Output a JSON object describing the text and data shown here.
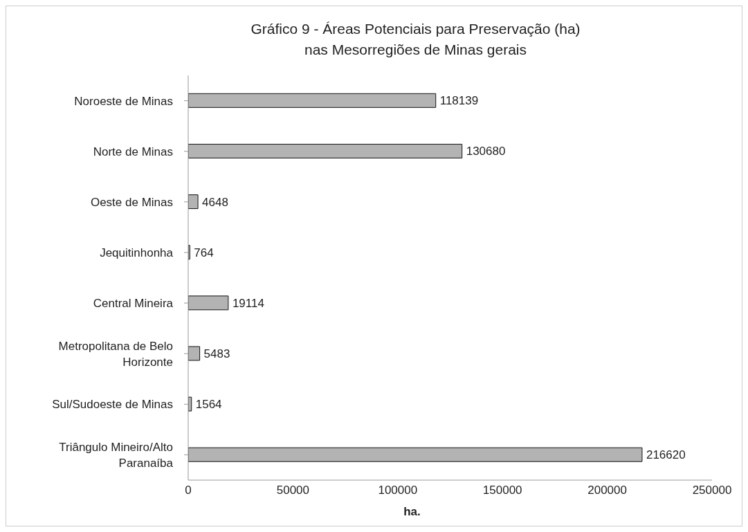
{
  "chart_data": {
    "type": "bar",
    "orientation": "horizontal",
    "title": "Gráfico 9 - Áreas Potenciais para Preservação (ha)\nnas Mesorregiões de Minas gerais",
    "xlabel": "ha.",
    "categories": [
      "Noroeste de Minas",
      "Norte de Minas",
      "Oeste de Minas",
      "Jequitinhonha",
      "Central Mineira",
      "Metropolitana de Belo Horizonte",
      "Sul/Sudoeste de Minas",
      "Triângulo Mineiro/Alto Paranaíba"
    ],
    "values": [
      118139,
      130680,
      4648,
      764,
      19114,
      5483,
      1564,
      216620
    ],
    "color": "#b3b3b3",
    "xlim": [
      0,
      250000
    ],
    "xticks": [
      0,
      50000,
      100000,
      150000,
      200000,
      250000
    ],
    "data_labels": true
  }
}
